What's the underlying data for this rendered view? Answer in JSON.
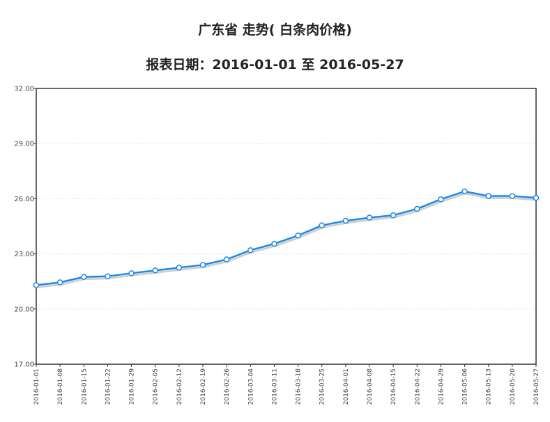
{
  "titles": {
    "main": "广东省    走势( 白条肉价格)",
    "sub": "报表日期：2016-01-01 至 2016-05-27"
  },
  "colors": {
    "line": "#1e88e5",
    "shadow": "#b0b0b0",
    "marker_fill": "#ffffff",
    "grid": "#d6e8f5",
    "axis": "#333333"
  },
  "chart_data": {
    "type": "line",
    "title": "广东省    走势( 白条肉价格)",
    "subtitle": "报表日期：2016-01-01 至 2016-05-27",
    "xlabel": "",
    "ylabel": "",
    "ylim": [
      17,
      32
    ],
    "yticks": [
      "17.00",
      "20.00",
      "23.00",
      "26.00",
      "29.00",
      "32.00"
    ],
    "ytick_values": [
      17,
      20,
      23,
      26,
      29,
      32
    ],
    "grid": true,
    "legend": "none",
    "categories": [
      "2016-01-01",
      "2016-01-08",
      "2016-01-15",
      "2016-01-22",
      "2016-01-29",
      "2016-02-05",
      "2016-02-12",
      "2016-02-19",
      "2016-02-26",
      "2016-03-04",
      "2016-03-11",
      "2016-03-18",
      "2016-03-25",
      "2016-04-01",
      "2016-04-08",
      "2016-04-15",
      "2016-04-22",
      "2016-04-29",
      "2016-05-06",
      "2016-05-13",
      "2016-05-20",
      "2016-05-27"
    ],
    "values": [
      21.3,
      21.45,
      21.75,
      21.78,
      21.95,
      22.1,
      22.25,
      22.4,
      22.7,
      23.2,
      23.55,
      24.0,
      24.55,
      24.8,
      24.97,
      25.1,
      25.45,
      25.97,
      26.4,
      26.15,
      26.15,
      26.05
    ]
  }
}
